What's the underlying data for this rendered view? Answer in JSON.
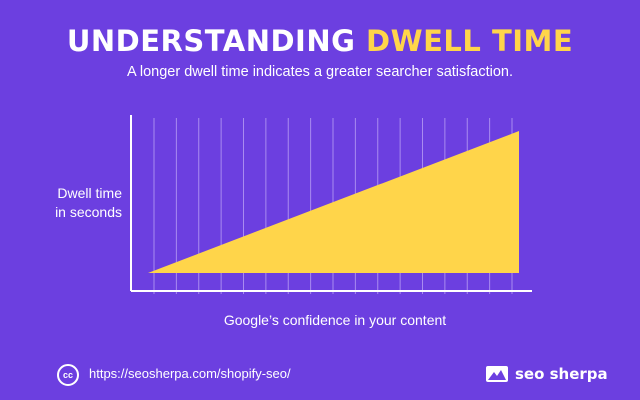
{
  "colors": {
    "background": "#6c3fe0",
    "accent": "#ffd54a",
    "text": "#ffffff",
    "grid": "#a98bf0"
  },
  "header": {
    "title_part1": "UNDERSTANDING ",
    "title_part2": "DWELL TIME",
    "subtitle": "A longer dwell time indicates a greater searcher satisfaction."
  },
  "chart_data": {
    "type": "area",
    "title": "",
    "ylabel_lines": [
      "Dwell time",
      "in seconds"
    ],
    "xlabel": "Google’s confidence in your content",
    "x": [
      0,
      1
    ],
    "y": [
      0,
      1
    ],
    "xlim": [
      0,
      1
    ],
    "ylim": [
      0,
      1
    ],
    "grid": "vertical",
    "gridline_count": 17,
    "legend": "none"
  },
  "footer": {
    "license_icon": "cc-icon",
    "license_label": "cc",
    "url": "https://seosherpa.com/shopify-seo/",
    "brand_icon": "mountain-flag-icon",
    "brand_name": "seo sherpa"
  }
}
